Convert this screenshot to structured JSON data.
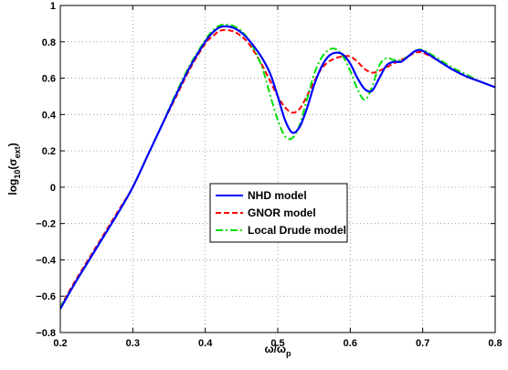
{
  "chart_data": {
    "type": "line",
    "xlabel": {
      "main": "ω/ω",
      "sub": "p"
    },
    "ylabel": {
      "main": "log",
      "sub1": "10",
      "mid": "(σ",
      "sub2": "ext",
      "end": ")"
    },
    "xlim": [
      0.2,
      0.8
    ],
    "ylim": [
      -0.8,
      1
    ],
    "xticks": [
      0.2,
      0.3,
      0.4,
      0.5,
      0.6,
      0.7,
      0.8
    ],
    "yticks": [
      -0.8,
      -0.6,
      -0.4,
      -0.2,
      0,
      0.2,
      0.4,
      0.6,
      0.8,
      1
    ],
    "xtick_labels": [
      "0.2",
      "0.3",
      "0.4",
      "0.5",
      "0.6",
      "0.7",
      "0.8"
    ],
    "ytick_labels": [
      "−0.8",
      "−0.6",
      "−0.4",
      "−0.2",
      "0",
      "0.2",
      "0.4",
      "0.6",
      "0.8",
      "1"
    ],
    "grid": true,
    "legend_position": "center",
    "series": [
      {
        "name": "NHD model",
        "color": "#0000ff",
        "style": "solid",
        "points": [
          [
            0.2,
            -0.67
          ],
          [
            0.22,
            -0.53
          ],
          [
            0.24,
            -0.4
          ],
          [
            0.26,
            -0.27
          ],
          [
            0.28,
            -0.14
          ],
          [
            0.3,
            0.0
          ],
          [
            0.32,
            0.17
          ],
          [
            0.34,
            0.34
          ],
          [
            0.36,
            0.51
          ],
          [
            0.38,
            0.67
          ],
          [
            0.4,
            0.8
          ],
          [
            0.41,
            0.85
          ],
          [
            0.42,
            0.88
          ],
          [
            0.43,
            0.885
          ],
          [
            0.44,
            0.875
          ],
          [
            0.45,
            0.85
          ],
          [
            0.46,
            0.81
          ],
          [
            0.47,
            0.76
          ],
          [
            0.48,
            0.7
          ],
          [
            0.49,
            0.62
          ],
          [
            0.5,
            0.5
          ],
          [
            0.51,
            0.37
          ],
          [
            0.52,
            0.3
          ],
          [
            0.53,
            0.33
          ],
          [
            0.54,
            0.43
          ],
          [
            0.55,
            0.56
          ],
          [
            0.56,
            0.66
          ],
          [
            0.57,
            0.72
          ],
          [
            0.58,
            0.74
          ],
          [
            0.59,
            0.73
          ],
          [
            0.6,
            0.68
          ],
          [
            0.61,
            0.6
          ],
          [
            0.62,
            0.54
          ],
          [
            0.63,
            0.53
          ],
          [
            0.64,
            0.6
          ],
          [
            0.65,
            0.67
          ],
          [
            0.66,
            0.69
          ],
          [
            0.67,
            0.69
          ],
          [
            0.68,
            0.72
          ],
          [
            0.69,
            0.75
          ],
          [
            0.7,
            0.75
          ],
          [
            0.72,
            0.7
          ],
          [
            0.74,
            0.65
          ],
          [
            0.76,
            0.61
          ],
          [
            0.78,
            0.58
          ],
          [
            0.8,
            0.55
          ]
        ]
      },
      {
        "name": "GNOR model",
        "color": "#ff0000",
        "style": "dashed",
        "points": [
          [
            0.2,
            -0.66
          ],
          [
            0.22,
            -0.52
          ],
          [
            0.24,
            -0.39
          ],
          [
            0.26,
            -0.26
          ],
          [
            0.28,
            -0.13
          ],
          [
            0.3,
            0.0
          ],
          [
            0.32,
            0.17
          ],
          [
            0.34,
            0.34
          ],
          [
            0.36,
            0.5
          ],
          [
            0.38,
            0.66
          ],
          [
            0.4,
            0.79
          ],
          [
            0.41,
            0.83
          ],
          [
            0.42,
            0.86
          ],
          [
            0.43,
            0.865
          ],
          [
            0.44,
            0.855
          ],
          [
            0.45,
            0.83
          ],
          [
            0.46,
            0.79
          ],
          [
            0.47,
            0.73
          ],
          [
            0.48,
            0.66
          ],
          [
            0.49,
            0.58
          ],
          [
            0.5,
            0.5
          ],
          [
            0.51,
            0.44
          ],
          [
            0.52,
            0.41
          ],
          [
            0.53,
            0.43
          ],
          [
            0.54,
            0.5
          ],
          [
            0.55,
            0.58
          ],
          [
            0.56,
            0.65
          ],
          [
            0.57,
            0.69
          ],
          [
            0.58,
            0.71
          ],
          [
            0.59,
            0.72
          ],
          [
            0.6,
            0.72
          ],
          [
            0.61,
            0.69
          ],
          [
            0.62,
            0.65
          ],
          [
            0.63,
            0.63
          ],
          [
            0.64,
            0.64
          ],
          [
            0.65,
            0.66
          ],
          [
            0.66,
            0.68
          ],
          [
            0.67,
            0.7
          ],
          [
            0.68,
            0.72
          ],
          [
            0.69,
            0.74
          ],
          [
            0.7,
            0.74
          ],
          [
            0.72,
            0.7
          ],
          [
            0.74,
            0.65
          ],
          [
            0.76,
            0.61
          ],
          [
            0.78,
            0.58
          ],
          [
            0.8,
            0.55
          ]
        ]
      },
      {
        "name": "Local Drude model",
        "color": "#00e000",
        "style": "dashdot",
        "points": [
          [
            0.2,
            -0.66
          ],
          [
            0.22,
            -0.53
          ],
          [
            0.24,
            -0.4
          ],
          [
            0.26,
            -0.27
          ],
          [
            0.28,
            -0.14
          ],
          [
            0.3,
            0.0
          ],
          [
            0.32,
            0.17
          ],
          [
            0.34,
            0.34
          ],
          [
            0.36,
            0.52
          ],
          [
            0.38,
            0.68
          ],
          [
            0.4,
            0.81
          ],
          [
            0.41,
            0.86
          ],
          [
            0.42,
            0.89
          ],
          [
            0.43,
            0.895
          ],
          [
            0.44,
            0.885
          ],
          [
            0.45,
            0.86
          ],
          [
            0.46,
            0.81
          ],
          [
            0.47,
            0.74
          ],
          [
            0.48,
            0.64
          ],
          [
            0.49,
            0.5
          ],
          [
            0.5,
            0.37
          ],
          [
            0.51,
            0.28
          ],
          [
            0.52,
            0.27
          ],
          [
            0.53,
            0.34
          ],
          [
            0.54,
            0.48
          ],
          [
            0.55,
            0.62
          ],
          [
            0.56,
            0.71
          ],
          [
            0.57,
            0.755
          ],
          [
            0.58,
            0.76
          ],
          [
            0.59,
            0.72
          ],
          [
            0.6,
            0.64
          ],
          [
            0.61,
            0.54
          ],
          [
            0.62,
            0.48
          ],
          [
            0.63,
            0.55
          ],
          [
            0.64,
            0.67
          ],
          [
            0.65,
            0.71
          ],
          [
            0.66,
            0.7
          ],
          [
            0.67,
            0.7
          ],
          [
            0.68,
            0.72
          ],
          [
            0.69,
            0.75
          ],
          [
            0.7,
            0.755
          ],
          [
            0.72,
            0.71
          ],
          [
            0.74,
            0.66
          ],
          [
            0.76,
            0.62
          ],
          [
            0.78,
            0.58
          ],
          [
            0.8,
            0.55
          ]
        ]
      }
    ]
  }
}
